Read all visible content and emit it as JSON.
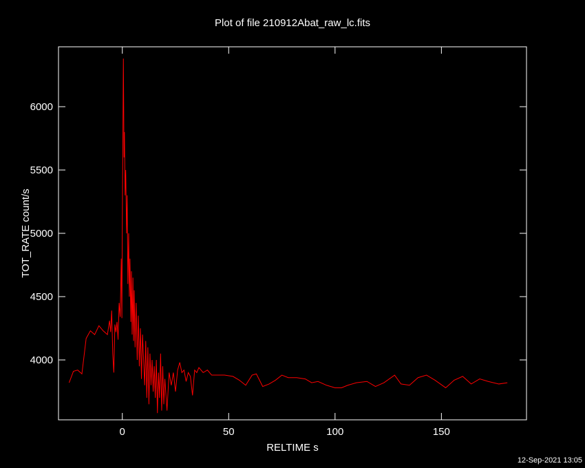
{
  "chart_data": {
    "type": "line",
    "title": "Plot of file 210912Abat_raw_lc.fits",
    "x_label": "RELTIME  s",
    "y_label": "TOT_RATE  count/s",
    "timestamp": "12-Sep-2021 13:05",
    "color": "#ff0000",
    "xlim": [
      -30,
      190
    ],
    "xticks": [
      0,
      50,
      100,
      150
    ],
    "ylim": [
      3527,
      6473
    ],
    "yticks": [
      4000,
      4500,
      5000,
      5500,
      6000
    ],
    "x": [
      -25,
      -23,
      -21,
      -19,
      -17,
      -15,
      -13,
      -11,
      -9,
      -7,
      -6,
      -5.5,
      -5,
      -4.5,
      -4,
      -3.5,
      -3,
      -2.5,
      -2,
      -1.5,
      -1,
      -0.5,
      -0.2,
      0,
      0.3,
      0.5,
      0.8,
      1,
      1.3,
      1.6,
      2,
      2.3,
      2.6,
      3,
      3.3,
      3.6,
      4,
      4.3,
      4.6,
      5,
      5.3,
      5.6,
      6,
      6.5,
      7,
      7.5,
      8,
      8.5,
      9,
      9.5,
      10,
      10.5,
      11,
      11.5,
      12,
      12.5,
      13,
      13.5,
      14,
      14.5,
      15,
      15.5,
      16,
      16.5,
      17,
      17.5,
      18,
      18.5,
      19,
      19.5,
      20,
      21,
      22,
      23,
      24,
      25,
      26,
      27,
      28,
      29,
      30,
      31,
      32,
      33,
      34,
      35,
      36,
      38,
      40,
      42,
      45,
      48,
      52,
      55,
      58,
      61,
      63,
      66,
      69,
      72,
      75,
      78,
      82,
      86,
      89,
      92,
      96,
      100,
      103,
      106,
      110,
      115,
      119,
      123,
      128,
      131,
      135,
      139,
      143,
      147,
      152,
      156,
      160,
      164,
      168,
      172,
      177,
      181
    ],
    "values": [
      3820,
      3910,
      3920,
      3890,
      4170,
      4230,
      4200,
      4270,
      4230,
      4200,
      4310,
      4220,
      4390,
      4050,
      3900,
      4280,
      4220,
      4300,
      4160,
      4450,
      4340,
      4800,
      4330,
      5100,
      5850,
      6380,
      5600,
      5800,
      5300,
      5500,
      5000,
      5300,
      4600,
      5000,
      4500,
      4800,
      4300,
      4700,
      4200,
      4650,
      4150,
      4550,
      4100,
      4450,
      4000,
      4350,
      3950,
      4250,
      3850,
      4200,
      4000,
      3800,
      4150,
      3700,
      4100,
      3650,
      4050,
      3800,
      4000,
      3750,
      3950,
      3700,
      4000,
      3580,
      3900,
      3700,
      4050,
      3600,
      3950,
      3650,
      3850,
      3600,
      3900,
      3800,
      3900,
      3750,
      3920,
      3980,
      3900,
      3920,
      3830,
      3900,
      3870,
      3720,
      3920,
      3900,
      3940,
      3900,
      3920,
      3880,
      3880,
      3880,
      3870,
      3840,
      3800,
      3880,
      3890,
      3790,
      3810,
      3840,
      3880,
      3860,
      3860,
      3850,
      3820,
      3830,
      3800,
      3780,
      3780,
      3800,
      3820,
      3830,
      3790,
      3820,
      3880,
      3810,
      3800,
      3860,
      3880,
      3840,
      3780,
      3840,
      3870,
      3810,
      3850,
      3830,
      3810,
      3820
    ]
  }
}
